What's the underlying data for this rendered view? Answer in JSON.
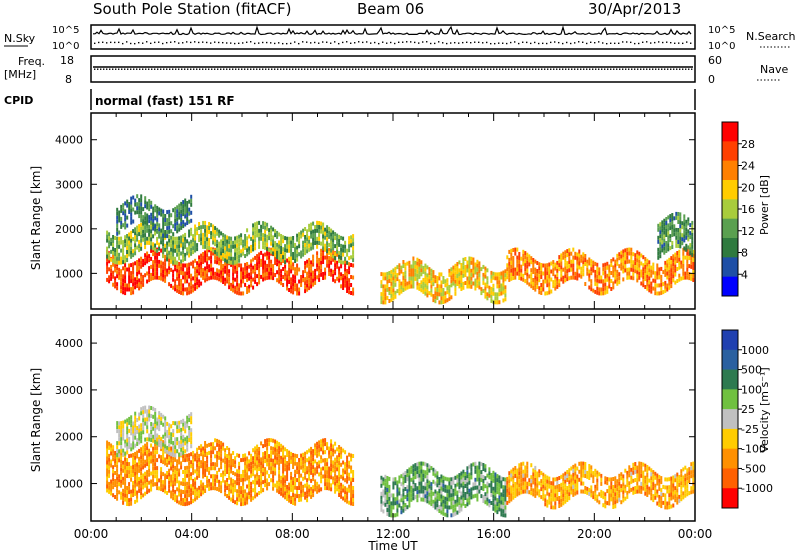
{
  "header": {
    "station": "South Pole Station (fitACF)",
    "beam": "Beam 06",
    "date": "30/Apr/2013"
  },
  "left_labels": {
    "nsky": "N.Sky",
    "freq": "Freq.",
    "freq_unit": "[MHz]",
    "cpid": "CPID"
  },
  "right_labels": {
    "nsearch": "N.Search",
    "nave": "Nave"
  },
  "nsky_axis": {
    "top": "10^5",
    "bottom": "10^0"
  },
  "freq_axis": {
    "top": "18",
    "bottom": "8"
  },
  "nave_axis": {
    "top": "60",
    "bottom": "0"
  },
  "cpid_text": "normal (fast) 151 RF",
  "colors": {
    "power_scale": [
      "#0000ff",
      "#1e4fa6",
      "#2f7a3f",
      "#5aa050",
      "#a8cc3c",
      "#ffcc00",
      "#ff8000",
      "#ff4000",
      "#ff0000"
    ],
    "velocity_scale": [
      "#2040b0",
      "#2a60a0",
      "#2e7a50",
      "#70c040",
      "#c0c0c0",
      "#ffcc00",
      "#ff9000",
      "#ff6000",
      "#ff0000"
    ]
  },
  "chart_data": [
    {
      "type": "heatmap",
      "name": "power",
      "ylabel": "Slant Range [km]",
      "yticks": [
        1000,
        2000,
        3000,
        4000
      ],
      "ylim": [
        200,
        4600
      ],
      "colorbar_label": "Power [dB]",
      "colorbar_ticks": [
        "4",
        "8",
        "12",
        "16",
        "20",
        "24",
        "28"
      ],
      "clim": [
        0,
        32
      ],
      "xlim": [
        0,
        24
      ],
      "bands": [
        {
          "x": [
            0.6,
            10.4
          ],
          "y": [
            700,
            1400
          ],
          "value": 28
        },
        {
          "x": [
            0.6,
            10.4
          ],
          "y": [
            1400,
            2000
          ],
          "value": 14
        },
        {
          "x": [
            1,
            4
          ],
          "y": [
            2000,
            2600
          ],
          "value": 8
        },
        {
          "x": [
            11.5,
            16.5
          ],
          "y": [
            500,
            1200
          ],
          "value": 20
        },
        {
          "x": [
            16.5,
            23.9
          ],
          "y": [
            700,
            1400
          ],
          "value": 24
        },
        {
          "x": [
            22.5,
            23.9
          ],
          "y": [
            1400,
            2200
          ],
          "value": 10
        }
      ]
    },
    {
      "type": "heatmap",
      "name": "velocity",
      "ylabel": "Slant Range [km]",
      "yticks": [
        1000,
        2000,
        3000,
        4000
      ],
      "ylim": [
        200,
        4600
      ],
      "xlabel": "Time UT",
      "xticks": [
        "00:00",
        "04:00",
        "08:00",
        "12:00",
        "16:00",
        "20:00",
        "00:00"
      ],
      "xlim": [
        0,
        24
      ],
      "colorbar_label": "Velocity [m s⁻¹]",
      "colorbar_ticks": [
        "1000",
        "500",
        "100",
        "25",
        "-25",
        "-100",
        "-500",
        "-1000"
      ],
      "bands": [
        {
          "x": [
            0.6,
            10.4
          ],
          "y": [
            700,
            1800
          ],
          "value": -300
        },
        {
          "x": [
            1,
            4
          ],
          "y": [
            1800,
            2500
          ],
          "value": 0
        },
        {
          "x": [
            11.5,
            16.5
          ],
          "y": [
            500,
            1300
          ],
          "value": 200
        },
        {
          "x": [
            16.5,
            23.9
          ],
          "y": [
            700,
            1300
          ],
          "value": -250
        }
      ]
    }
  ]
}
